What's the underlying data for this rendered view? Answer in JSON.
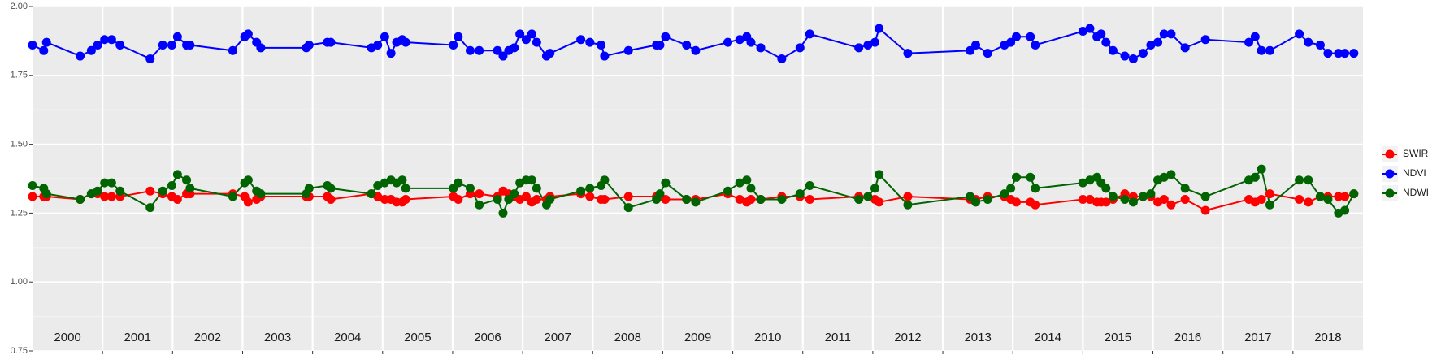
{
  "chart_data": {
    "type": "line",
    "x": [
      2000.0,
      2000.16,
      2000.2,
      2000.68,
      2000.84,
      2000.93,
      2001.03,
      2001.13,
      2001.25,
      2001.68,
      2001.86,
      2001.99,
      2002.07,
      2002.2,
      2002.25,
      2002.86,
      2003.03,
      2003.08,
      2003.2,
      2003.26,
      2003.91,
      2003.95,
      2004.21,
      2004.26,
      2004.84,
      2004.93,
      2005.03,
      2005.12,
      2005.2,
      2005.28,
      2005.33,
      2006.01,
      2006.08,
      2006.25,
      2006.38,
      2006.64,
      2006.72,
      2006.8,
      2006.88,
      2006.96,
      2007.05,
      2007.13,
      2007.2,
      2007.34,
      2007.39,
      2007.83,
      2007.96,
      2008.12,
      2008.17,
      2008.51,
      2008.91,
      2008.96,
      2009.04,
      2009.34,
      2009.47,
      2009.93,
      2010.1,
      2010.2,
      2010.26,
      2010.4,
      2010.7,
      2010.96,
      2011.1,
      2011.8,
      2011.93,
      2012.03,
      2012.09,
      2012.5,
      2013.39,
      2013.47,
      2013.64,
      2013.88,
      2013.97,
      2014.05,
      2014.25,
      2014.32,
      2015.0,
      2015.1,
      2015.2,
      2015.26,
      2015.33,
      2015.43,
      2015.6,
      2015.72,
      2015.86,
      2015.97,
      2016.07,
      2016.16,
      2016.26,
      2016.46,
      2016.75,
      2017.37,
      2017.46,
      2017.55,
      2017.67,
      2018.09,
      2018.22,
      2018.39,
      2018.5,
      2018.65,
      2018.74,
      2018.87
    ],
    "series": [
      {
        "name": "SWIR",
        "color": "#ff0000",
        "values": [
          1.31,
          1.31,
          1.31,
          1.3,
          1.32,
          1.32,
          1.31,
          1.31,
          1.31,
          1.33,
          1.32,
          1.31,
          1.3,
          1.32,
          1.32,
          1.32,
          1.31,
          1.29,
          1.3,
          1.31,
          1.31,
          1.31,
          1.31,
          1.3,
          1.32,
          1.31,
          1.3,
          1.3,
          1.29,
          1.29,
          1.3,
          1.31,
          1.3,
          1.32,
          1.32,
          1.31,
          1.33,
          1.32,
          1.31,
          1.3,
          1.31,
          1.29,
          1.3,
          1.3,
          1.31,
          1.32,
          1.31,
          1.3,
          1.3,
          1.31,
          1.31,
          1.31,
          1.3,
          1.3,
          1.3,
          1.32,
          1.3,
          1.29,
          1.3,
          1.3,
          1.31,
          1.31,
          1.3,
          1.31,
          1.31,
          1.3,
          1.29,
          1.31,
          1.3,
          1.3,
          1.31,
          1.31,
          1.3,
          1.29,
          1.29,
          1.28,
          1.3,
          1.3,
          1.29,
          1.29,
          1.29,
          1.3,
          1.32,
          1.31,
          1.31,
          1.31,
          1.29,
          1.3,
          1.28,
          1.3,
          1.26,
          1.3,
          1.29,
          1.3,
          1.32,
          1.3,
          1.29,
          1.31,
          1.31,
          1.31,
          1.31,
          1.32
        ]
      },
      {
        "name": "NDVI",
        "color": "#0000ff",
        "values": [
          1.86,
          1.84,
          1.87,
          1.82,
          1.84,
          1.86,
          1.88,
          1.88,
          1.86,
          1.81,
          1.86,
          1.86,
          1.89,
          1.86,
          1.86,
          1.84,
          1.89,
          1.9,
          1.87,
          1.85,
          1.85,
          1.86,
          1.87,
          1.87,
          1.85,
          1.86,
          1.89,
          1.83,
          1.87,
          1.88,
          1.87,
          1.86,
          1.89,
          1.84,
          1.84,
          1.84,
          1.82,
          1.84,
          1.85,
          1.9,
          1.88,
          1.9,
          1.87,
          1.82,
          1.83,
          1.88,
          1.87,
          1.86,
          1.82,
          1.84,
          1.86,
          1.86,
          1.89,
          1.86,
          1.84,
          1.87,
          1.88,
          1.89,
          1.87,
          1.85,
          1.81,
          1.85,
          1.9,
          1.85,
          1.86,
          1.87,
          1.92,
          1.83,
          1.84,
          1.86,
          1.83,
          1.86,
          1.87,
          1.89,
          1.89,
          1.86,
          1.91,
          1.92,
          1.89,
          1.9,
          1.87,
          1.84,
          1.82,
          1.81,
          1.83,
          1.86,
          1.87,
          1.9,
          1.9,
          1.85,
          1.88,
          1.87,
          1.89,
          1.84,
          1.84,
          1.9,
          1.87,
          1.86,
          1.83,
          1.83,
          1.83,
          1.83
        ]
      },
      {
        "name": "NDWI",
        "color": "#006400",
        "values": [
          1.35,
          1.34,
          1.32,
          1.3,
          1.32,
          1.33,
          1.36,
          1.36,
          1.33,
          1.27,
          1.33,
          1.35,
          1.39,
          1.37,
          1.34,
          1.31,
          1.36,
          1.37,
          1.33,
          1.32,
          1.32,
          1.34,
          1.35,
          1.34,
          1.32,
          1.35,
          1.36,
          1.37,
          1.36,
          1.37,
          1.34,
          1.34,
          1.36,
          1.34,
          1.28,
          1.3,
          1.25,
          1.3,
          1.32,
          1.36,
          1.37,
          1.37,
          1.34,
          1.28,
          1.3,
          1.33,
          1.34,
          1.35,
          1.37,
          1.27,
          1.3,
          1.32,
          1.36,
          1.3,
          1.29,
          1.33,
          1.36,
          1.37,
          1.34,
          1.3,
          1.3,
          1.32,
          1.35,
          1.3,
          1.31,
          1.34,
          1.39,
          1.28,
          1.31,
          1.29,
          1.3,
          1.32,
          1.34,
          1.38,
          1.38,
          1.34,
          1.36,
          1.37,
          1.38,
          1.36,
          1.34,
          1.31,
          1.3,
          1.29,
          1.31,
          1.32,
          1.37,
          1.38,
          1.39,
          1.34,
          1.31,
          1.37,
          1.38,
          1.41,
          1.28,
          1.37,
          1.37,
          1.31,
          1.3,
          1.25,
          1.26,
          1.32
        ]
      }
    ],
    "xlim": [
      2000,
      2019
    ],
    "xticks": [
      2001,
      2002,
      2003,
      2004,
      2005,
      2006,
      2007,
      2008,
      2009,
      2010,
      2011,
      2012,
      2013,
      2014,
      2015,
      2016,
      2017,
      2018
    ],
    "xlabels": [
      {
        "value": 2000.5,
        "label": "2000"
      },
      {
        "value": 2001.5,
        "label": "2001"
      },
      {
        "value": 2002.5,
        "label": "2002"
      },
      {
        "value": 2003.5,
        "label": "2003"
      },
      {
        "value": 2004.5,
        "label": "2004"
      },
      {
        "value": 2005.5,
        "label": "2005"
      },
      {
        "value": 2006.5,
        "label": "2006"
      },
      {
        "value": 2007.5,
        "label": "2007"
      },
      {
        "value": 2008.5,
        "label": "2008"
      },
      {
        "value": 2009.5,
        "label": "2009"
      },
      {
        "value": 2010.5,
        "label": "2010"
      },
      {
        "value": 2011.5,
        "label": "2011"
      },
      {
        "value": 2012.5,
        "label": "2012"
      },
      {
        "value": 2013.5,
        "label": "2013"
      },
      {
        "value": 2014.5,
        "label": "2014"
      },
      {
        "value": 2015.5,
        "label": "2015"
      },
      {
        "value": 2016.5,
        "label": "2016"
      },
      {
        "value": 2017.5,
        "label": "2017"
      },
      {
        "value": 2018.5,
        "label": "2018"
      }
    ],
    "ylim": [
      0.75,
      2.0
    ],
    "yticks": [
      {
        "value": 0.75,
        "label": "0.75"
      },
      {
        "value": 1.0,
        "label": "1.00"
      },
      {
        "value": 1.25,
        "label": "1.25"
      },
      {
        "value": 1.5,
        "label": "1.50"
      },
      {
        "value": 1.75,
        "label": "1.75"
      },
      {
        "value": 2.0,
        "label": "2.00"
      }
    ],
    "grid": true,
    "legend": "right"
  }
}
